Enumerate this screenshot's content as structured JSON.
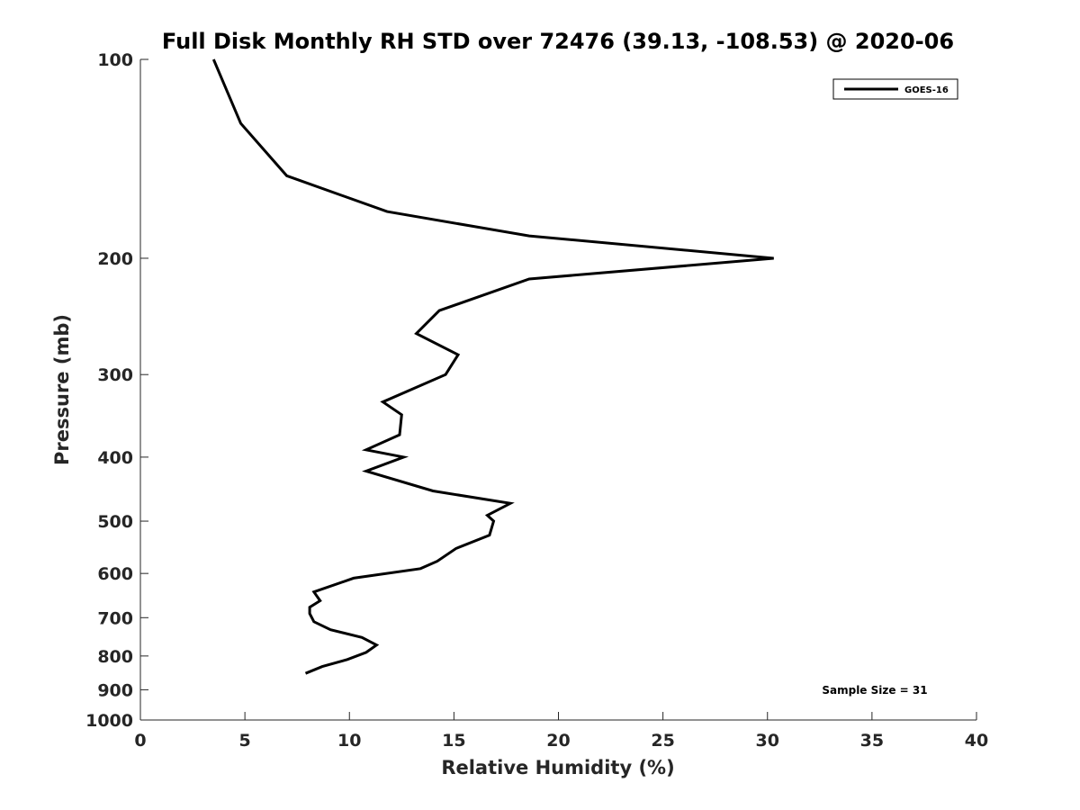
{
  "chart_data": {
    "type": "line",
    "title": "Full Disk Monthly RH STD over 72476 (39.13, -108.53) @ 2020-06",
    "xlabel": "Relative Humidity (%)",
    "ylabel": "Pressure (mb)",
    "xlim": [
      0,
      40
    ],
    "ylim": [
      100,
      1000
    ],
    "y_scale": "log",
    "y_reversed": true,
    "x_ticks": [
      0,
      5,
      10,
      15,
      20,
      25,
      30,
      35,
      40
    ],
    "y_ticks": [
      100,
      200,
      300,
      400,
      500,
      600,
      700,
      800,
      900,
      1000
    ],
    "grid": false,
    "legend_position": "top-right",
    "series": [
      {
        "name": "GOES-16",
        "color": "#000000",
        "x": [
          3.5,
          4.8,
          7.0,
          11.8,
          18.6,
          30.3,
          18.6,
          14.3,
          13.2,
          15.2,
          14.6,
          11.6,
          12.5,
          12.4,
          10.8,
          12.6,
          10.8,
          14.0,
          17.7,
          16.6,
          16.9,
          16.7,
          15.1,
          14.2,
          13.4,
          10.2,
          8.3,
          8.6,
          8.1,
          8.1,
          8.3,
          9.1,
          10.6,
          11.3,
          10.8,
          9.9,
          8.7,
          7.9
        ],
        "y": [
          100,
          125,
          150,
          170,
          185,
          200,
          215,
          240,
          260,
          280,
          300,
          330,
          345,
          370,
          390,
          400,
          420,
          450,
          470,
          490,
          500,
          525,
          550,
          575,
          590,
          610,
          640,
          660,
          675,
          690,
          710,
          730,
          750,
          770,
          790,
          810,
          830,
          850
        ]
      }
    ],
    "annotation": "Sample Size = 31"
  }
}
